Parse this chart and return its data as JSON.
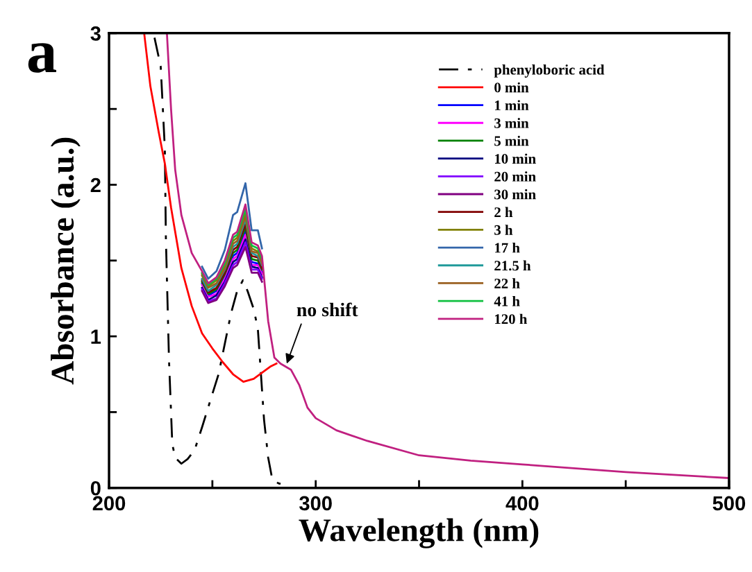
{
  "chart_data": {
    "type": "line",
    "xlabel": "Wavelength (nm)",
    "ylabel": "Absorbance (a.u.)",
    "xlim": [
      200,
      500
    ],
    "ylim": [
      0,
      3
    ],
    "xticks": [
      200,
      {
        "value": 250,
        "label": null
      },
      300,
      {
        "value": 350,
        "label": null
      },
      400,
      {
        "value": 450,
        "label": null
      },
      500
    ],
    "yticks": [
      0,
      {
        "value": 0.5,
        "label": null
      },
      1,
      {
        "value": 1.5,
        "label": null
      },
      2,
      {
        "value": 2.5,
        "label": null
      },
      3
    ],
    "grid": false,
    "legend": "top right",
    "x": [
      228,
      230,
      232,
      235,
      240,
      245,
      248,
      252,
      256,
      260,
      262,
      266,
      269,
      272,
      274,
      277,
      280,
      283,
      288,
      292,
      296,
      300,
      310,
      325,
      350,
      375,
      400,
      450,
      500
    ],
    "annotations": [
      "a",
      {
        "text": "no shift",
        "x": 286,
        "y": 0.82
      }
    ],
    "series": [
      {
        "name": "phenyloboric acid",
        "color": "#000000",
        "line_style": "dashdot",
        "x": [
          222,
          225,
          227,
          227.5,
          229,
          230.6,
          232,
          235,
          238,
          241.4,
          245,
          250,
          253,
          256,
          259,
          262,
          264.8,
          267,
          270,
          272,
          275,
          277,
          279,
          282,
          285
        ],
        "values": [
          2.97,
          2.78,
          2.24,
          1.65,
          0.85,
          0.29,
          0.2,
          0.16,
          0.19,
          0.25,
          0.4,
          0.62,
          0.75,
          0.95,
          1.15,
          1.3,
          1.37,
          1.3,
          1.18,
          1.05,
          0.45,
          0.2,
          0.055,
          0.03,
          0.02
        ]
      },
      {
        "name": "0 min",
        "color": "#ff0000",
        "x": [
          217,
          220,
          224,
          227,
          230,
          235,
          240,
          245,
          250,
          255,
          260,
          265,
          270,
          275,
          278,
          281
        ],
        "values": [
          3.0,
          2.65,
          2.35,
          2.14,
          1.85,
          1.45,
          1.2,
          1.02,
          0.92,
          0.83,
          0.75,
          0.7,
          0.72,
          0.77,
          0.8,
          0.82
        ]
      },
      {
        "name": "1 min",
        "color": "#0000ff",
        "values": [
          null,
          null,
          null,
          null,
          null,
          1.35,
          1.27,
          1.3,
          1.39,
          1.53,
          1.55,
          1.69,
          1.49,
          1.48,
          1.42,
          null,
          null,
          null,
          null,
          null,
          null,
          null,
          null,
          null,
          null,
          null,
          null,
          null,
          null
        ]
      },
      {
        "name": "3 min",
        "color": "#ff00ff",
        "values": [
          null,
          null,
          null,
          null,
          null,
          1.34,
          1.26,
          1.28,
          1.38,
          1.51,
          1.53,
          1.67,
          1.47,
          1.47,
          1.41,
          null,
          null,
          null,
          null,
          null,
          null,
          null,
          null,
          null,
          null,
          null,
          null,
          null,
          null
        ]
      },
      {
        "name": "5 min",
        "color": "#008000",
        "values": [
          null,
          null,
          null,
          null,
          null,
          1.36,
          1.28,
          1.31,
          1.41,
          1.55,
          1.57,
          1.72,
          1.51,
          1.5,
          1.44,
          null,
          null,
          null,
          null,
          null,
          null,
          null,
          null,
          null,
          null,
          null,
          null,
          null,
          null
        ]
      },
      {
        "name": "10 min",
        "color": "#000080",
        "values": [
          null,
          null,
          null,
          null,
          null,
          1.32,
          1.24,
          1.27,
          1.36,
          1.49,
          1.51,
          1.64,
          1.46,
          1.45,
          1.39,
          null,
          null,
          null,
          null,
          null,
          null,
          null,
          null,
          null,
          null,
          null,
          null,
          null,
          null
        ]
      },
      {
        "name": "20 min",
        "color": "#8000ff",
        "values": [
          null,
          null,
          null,
          null,
          null,
          1.31,
          1.23,
          1.25,
          1.35,
          1.47,
          1.49,
          1.62,
          1.44,
          1.44,
          1.38,
          null,
          null,
          null,
          null,
          null,
          null,
          null,
          null,
          null,
          null,
          null,
          null,
          null,
          null
        ]
      },
      {
        "name": "30 min",
        "color": "#800080",
        "values": [
          null,
          null,
          null,
          null,
          null,
          1.3,
          1.22,
          1.24,
          1.33,
          1.45,
          1.47,
          1.59,
          1.42,
          1.42,
          1.36,
          null,
          null,
          null,
          null,
          null,
          null,
          null,
          null,
          null,
          null,
          null,
          null,
          null,
          null
        ]
      },
      {
        "name": "2 h",
        "color": "#800000",
        "values": [
          null,
          null,
          null,
          null,
          null,
          1.37,
          1.29,
          1.32,
          1.42,
          1.57,
          1.59,
          1.74,
          1.53,
          1.52,
          1.45,
          null,
          null,
          null,
          null,
          null,
          null,
          null,
          null,
          null,
          null,
          null,
          null,
          null,
          null
        ]
      },
      {
        "name": "3 h",
        "color": "#808000",
        "values": [
          null,
          null,
          null,
          null,
          null,
          1.41,
          1.33,
          1.37,
          1.47,
          1.63,
          1.65,
          1.82,
          1.58,
          1.56,
          1.5,
          null,
          null,
          null,
          null,
          null,
          null,
          null,
          null,
          null,
          null,
          null,
          null,
          null,
          null
        ]
      },
      {
        "name": "17 h",
        "color": "#3366aa",
        "values": [
          null,
          null,
          null,
          null,
          null,
          1.46,
          1.38,
          1.43,
          1.57,
          1.8,
          1.82,
          2.01,
          1.7,
          1.7,
          1.58,
          null,
          null,
          null,
          null,
          null,
          null,
          null,
          null,
          null,
          null,
          null,
          null,
          null,
          null
        ]
      },
      {
        "name": "21.5 h",
        "color": "#209a9a",
        "values": [
          null,
          null,
          null,
          null,
          null,
          1.38,
          1.3,
          1.34,
          1.44,
          1.59,
          1.61,
          1.77,
          1.55,
          1.53,
          1.47,
          null,
          null,
          null,
          null,
          null,
          null,
          null,
          null,
          null,
          null,
          null,
          null,
          null,
          null
        ]
      },
      {
        "name": "22 h",
        "color": "#9a6020",
        "values": [
          null,
          null,
          null,
          null,
          null,
          1.4,
          1.32,
          1.35,
          1.45,
          1.61,
          1.63,
          1.79,
          1.56,
          1.55,
          1.48,
          null,
          null,
          null,
          null,
          null,
          null,
          null,
          null,
          null,
          null,
          null,
          null,
          null,
          null
        ]
      },
      {
        "name": "41 h",
        "color": "#10c040",
        "values": [
          null,
          null,
          null,
          null,
          null,
          1.42,
          1.34,
          1.38,
          1.48,
          1.65,
          1.67,
          1.84,
          1.6,
          1.58,
          1.51,
          null,
          null,
          null,
          null,
          null,
          null,
          null,
          null,
          null,
          null,
          null,
          null,
          null,
          null
        ]
      },
      {
        "name": "120 h",
        "color": "#c02080",
        "values": [
          3.0,
          2.5,
          2.1,
          1.8,
          1.55,
          1.43,
          1.35,
          1.39,
          1.5,
          1.67,
          1.69,
          1.87,
          1.62,
          1.6,
          1.53,
          1.1,
          0.86,
          0.82,
          0.78,
          0.68,
          0.53,
          0.46,
          0.38,
          0.31,
          0.215,
          0.18,
          0.155,
          0.105,
          0.065
        ]
      }
    ]
  }
}
